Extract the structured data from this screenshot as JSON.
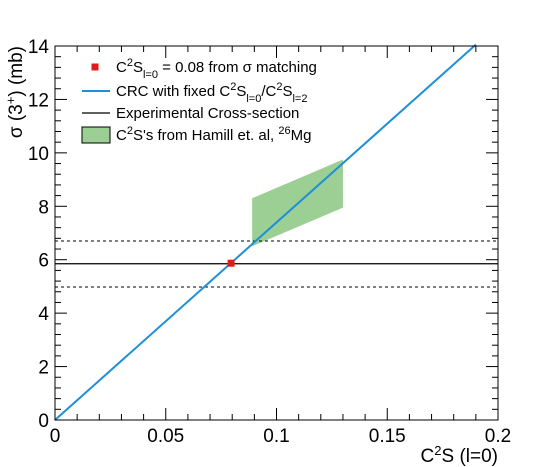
{
  "chart_data": {
    "type": "line",
    "xlabel": {
      "base": "C",
      "sup": "2",
      "rest": "S (l=0)"
    },
    "ylabel": {
      "pre": "σ (3",
      "sup": "+",
      "post": ") (mb)"
    },
    "xlim": [
      0,
      0.2
    ],
    "ylim": [
      0,
      14
    ],
    "x_ticks": [
      0,
      0.05,
      0.1,
      0.15,
      0.2
    ],
    "x_tick_labels": [
      "0",
      "0.05",
      "0.1",
      "0.15",
      "0.2"
    ],
    "y_ticks": [
      0,
      2,
      4,
      6,
      8,
      10,
      12,
      14
    ],
    "y_tick_labels": [
      "0",
      "2",
      "4",
      "6",
      "8",
      "10",
      "12",
      "14"
    ],
    "grid": false,
    "legend_position": "top-left",
    "crc_line": {
      "x": [
        0,
        0.19
      ],
      "y": [
        0,
        14.05
      ],
      "color": "#1f8fd6"
    },
    "experimental": {
      "value": 5.85,
      "lower": 4.98,
      "upper": 6.7,
      "xlim": [
        0,
        0.2
      ],
      "color": "#000000"
    },
    "matching_point": {
      "x": 0.0795,
      "y": 5.87,
      "color": "#e31a1c"
    },
    "hamill_band": {
      "polygon": [
        [
          0.089,
          8.3
        ],
        [
          0.13,
          9.75
        ],
        [
          0.13,
          7.95
        ],
        [
          0.089,
          6.5
        ]
      ],
      "color": "#9ccf94"
    },
    "legend": [
      {
        "kind": "marker",
        "parts": [
          {
            "t": "C"
          },
          {
            "t": "2",
            "s": "sup"
          },
          {
            "t": "S"
          },
          {
            "t": "l=0",
            "s": "sub"
          },
          {
            "t": " = 0.08 from σ matching"
          }
        ]
      },
      {
        "kind": "line-blue",
        "parts": [
          {
            "t": "CRC with fixed C"
          },
          {
            "t": "2",
            "s": "sup"
          },
          {
            "t": "S"
          },
          {
            "t": "l=0",
            "s": "sub"
          },
          {
            "t": "/C"
          },
          {
            "t": "2",
            "s": "sup"
          },
          {
            "t": "S"
          },
          {
            "t": "l=2",
            "s": "sub"
          }
        ]
      },
      {
        "kind": "line-black",
        "parts": [
          {
            "t": "Experimental Cross-section"
          }
        ]
      },
      {
        "kind": "box",
        "parts": [
          {
            "t": "C"
          },
          {
            "t": "2",
            "s": "sup"
          },
          {
            "t": "S's from Hamill et. al, "
          },
          {
            "t": "26",
            "s": "sup"
          },
          {
            "t": "Mg"
          }
        ]
      }
    ]
  }
}
